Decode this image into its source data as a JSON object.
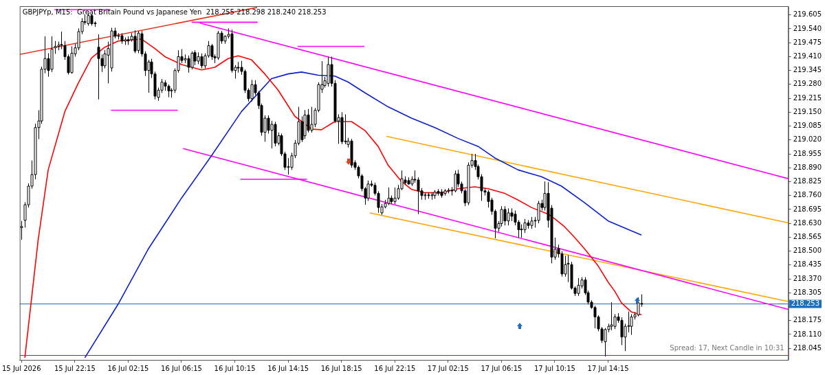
{
  "chart_data": {
    "type": "candlestick",
    "title": "GBPJPYp, M15:  Great Britain Pound vs Japanese Yen  218.255 218.298 218.240 218.253",
    "annotations": [
      "Spread: 17, Next Candle in 10:31"
    ],
    "x": [
      "2026-07-15T18:15",
      "2026-07-15T18:30",
      "2026-07-15T18:45",
      "2026-07-15T19:00",
      "2026-07-15T19:15",
      "2026-07-15T19:30",
      "2026-07-15T19:45",
      "2026-07-15T20:00",
      "2026-07-15T20:15",
      "2026-07-15T20:30",
      "2026-07-15T20:45",
      "2026-07-15T21:00",
      "2026-07-15T21:15",
      "2026-07-15T21:30",
      "2026-07-15T21:45",
      "2026-07-15T22:00",
      "2026-07-15T22:15",
      "2026-07-15T22:30",
      "2026-07-15T22:45",
      "2026-07-15T23:00",
      "2026-07-15T23:15",
      "2026-07-15T23:30",
      "2026-07-15T23:45",
      "2026-07-16T00:00",
      "2026-07-16T00:15",
      "2026-07-16T00:30",
      "2026-07-16T00:45",
      "2026-07-16T01:00",
      "2026-07-16T01:15",
      "2026-07-16T01:30",
      "2026-07-16T01:45",
      "2026-07-16T02:00",
      "2026-07-16T02:15",
      "2026-07-16T02:30",
      "2026-07-16T02:45",
      "2026-07-16T03:00",
      "2026-07-16T03:15",
      "2026-07-16T03:30",
      "2026-07-16T03:45",
      "2026-07-16T04:00",
      "2026-07-16T04:15",
      "2026-07-16T04:30",
      "2026-07-16T04:45",
      "2026-07-16T05:00",
      "2026-07-16T05:15",
      "2026-07-16T05:30",
      "2026-07-16T05:45",
      "2026-07-16T06:00",
      "2026-07-16T06:15",
      "2026-07-16T06:30",
      "2026-07-16T06:45",
      "2026-07-16T07:00",
      "2026-07-16T07:15",
      "2026-07-16T07:30",
      "2026-07-16T07:45",
      "2026-07-16T08:00",
      "2026-07-16T08:15",
      "2026-07-16T08:30",
      "2026-07-16T08:45",
      "2026-07-16T09:00",
      "2026-07-16T09:15",
      "2026-07-16T09:30",
      "2026-07-16T09:45",
      "2026-07-16T10:00",
      "2026-07-16T10:15",
      "2026-07-16T10:30",
      "2026-07-16T10:45",
      "2026-07-16T11:00",
      "2026-07-16T11:15",
      "2026-07-16T11:30",
      "2026-07-16T11:45",
      "2026-07-16T12:00",
      "2026-07-16T12:15",
      "2026-07-16T12:30",
      "2026-07-16T12:45",
      "2026-07-16T13:00",
      "2026-07-16T13:15",
      "2026-07-16T13:30",
      "2026-07-16T13:45",
      "2026-07-16T14:00",
      "2026-07-16T14:15",
      "2026-07-16T14:30",
      "2026-07-16T14:45",
      "2026-07-16T15:00",
      "2026-07-16T15:15",
      "2026-07-16T15:30",
      "2026-07-16T15:45",
      "2026-07-16T16:00",
      "2026-07-16T16:15",
      "2026-07-16T16:30",
      "2026-07-16T16:45",
      "2026-07-16T17:00",
      "2026-07-16T17:15",
      "2026-07-16T17:30",
      "2026-07-16T17:45",
      "2026-07-16T18:00",
      "2026-07-16T18:15",
      "2026-07-16T18:30",
      "2026-07-16T18:45",
      "2026-07-16T19:00",
      "2026-07-16T19:15",
      "2026-07-16T19:30",
      "2026-07-16T19:45",
      "2026-07-16T20:00",
      "2026-07-16T20:15",
      "2026-07-16T20:30",
      "2026-07-16T20:45",
      "2026-07-16T21:00",
      "2026-07-16T21:15",
      "2026-07-16T21:30",
      "2026-07-16T21:45",
      "2026-07-16T22:00",
      "2026-07-16T22:15",
      "2026-07-16T22:30",
      "2026-07-16T22:45",
      "2026-07-16T23:00",
      "2026-07-16T23:15",
      "2026-07-16T23:30",
      "2026-07-16T23:45",
      "2026-07-17T00:00",
      "2026-07-17T00:15",
      "2026-07-17T00:30",
      "2026-07-17T00:45",
      "2026-07-17T01:00",
      "2026-07-17T01:15",
      "2026-07-17T01:30",
      "2026-07-17T01:45",
      "2026-07-17T02:00",
      "2026-07-17T02:15",
      "2026-07-17T02:30",
      "2026-07-17T02:45",
      "2026-07-17T03:00",
      "2026-07-17T03:15",
      "2026-07-17T03:30",
      "2026-07-17T03:45",
      "2026-07-17T04:00",
      "2026-07-17T04:15",
      "2026-07-17T04:30",
      "2026-07-17T04:45",
      "2026-07-17T05:00",
      "2026-07-17T05:15",
      "2026-07-17T05:30",
      "2026-07-17T05:45",
      "2026-07-17T06:00",
      "2026-07-17T06:15",
      "2026-07-17T06:30",
      "2026-07-17T06:45",
      "2026-07-17T07:00",
      "2026-07-17T07:15",
      "2026-07-17T07:30",
      "2026-07-17T07:45",
      "2026-07-17T08:00",
      "2026-07-17T08:15",
      "2026-07-17T08:30",
      "2026-07-17T08:45",
      "2026-07-17T09:00",
      "2026-07-17T09:15",
      "2026-07-17T09:30",
      "2026-07-17T09:45",
      "2026-07-17T10:00",
      "2026-07-17T10:15",
      "2026-07-17T10:30",
      "2026-07-17T10:45",
      "2026-07-17T11:00",
      "2026-07-17T11:15",
      "2026-07-17T11:30",
      "2026-07-17T11:45",
      "2026-07-17T12:00",
      "2026-07-17T12:15",
      "2026-07-17T12:30",
      "2026-07-17T12:45",
      "2026-07-17T13:00",
      "2026-07-17T13:15",
      "2026-07-17T13:30",
      "2026-07-17T13:45",
      "2026-07-17T14:00",
      "2026-07-17T14:15",
      "2026-07-17T14:30",
      "2026-07-17T14:45",
      "2026-07-17T15:00",
      "2026-07-17T15:15",
      "2026-07-17T15:30",
      "2026-07-17T15:45",
      "2026-07-17T16:00",
      "2026-07-17T16:15",
      "2026-07-17T16:30",
      "2026-07-17T16:45"
    ],
    "ohlc": [
      [
        218.61,
        218.641,
        218.553,
        218.615
      ],
      [
        218.644,
        218.729,
        218.61,
        218.717
      ],
      [
        218.717,
        218.817,
        218.704,
        218.804
      ],
      [
        218.804,
        218.924,
        218.792,
        218.858
      ],
      [
        218.858,
        219.096,
        218.836,
        219.078
      ],
      [
        219.078,
        219.159,
        219.024,
        219.109
      ],
      [
        219.109,
        219.363,
        219.096,
        219.351
      ],
      [
        219.351,
        219.505,
        219.332,
        219.401
      ],
      [
        219.401,
        219.426,
        219.316,
        219.345
      ],
      [
        219.351,
        219.505,
        219.338,
        219.445
      ],
      [
        219.452,
        219.483,
        219.423,
        219.458
      ],
      [
        219.458,
        219.48,
        219.44,
        219.464
      ],
      [
        219.464,
        219.527,
        219.445,
        219.467
      ],
      [
        219.461,
        219.483,
        219.395,
        219.41
      ],
      [
        219.41,
        219.42,
        219.326,
        219.335
      ],
      [
        219.335,
        219.458,
        219.33,
        219.426
      ],
      [
        219.423,
        219.47,
        219.41,
        219.451
      ],
      [
        219.451,
        219.542,
        219.44,
        219.527
      ],
      [
        219.527,
        219.59,
        219.515,
        219.574
      ],
      [
        219.574,
        219.608,
        219.56,
        219.571
      ],
      [
        219.564,
        219.615,
        219.555,
        219.602
      ],
      [
        219.602,
        219.61,
        219.555,
        219.564
      ],
      [
        219.567,
        219.575,
        219.549,
        219.564
      ],
      [
        219.454,
        219.514,
        219.21,
        219.401
      ],
      [
        219.401,
        219.42,
        219.338,
        219.367
      ],
      [
        219.367,
        219.44,
        219.355,
        219.423
      ],
      [
        219.417,
        219.48,
        219.285,
        219.448
      ],
      [
        219.357,
        219.545,
        219.34,
        219.53
      ],
      [
        219.53,
        219.545,
        219.495,
        219.505
      ],
      [
        219.505,
        219.52,
        219.49,
        219.508
      ],
      [
        219.508,
        219.52,
        219.47,
        219.483
      ],
      [
        219.483,
        219.5,
        219.465,
        219.489
      ],
      [
        219.489,
        219.505,
        219.465,
        219.483
      ],
      [
        219.489,
        219.52,
        219.48,
        219.505
      ],
      [
        219.505,
        219.533,
        219.426,
        219.436
      ],
      [
        219.439,
        219.53,
        219.426,
        219.52
      ],
      [
        219.517,
        219.53,
        219.41,
        219.423
      ],
      [
        219.423,
        219.435,
        219.319,
        219.345
      ],
      [
        219.345,
        219.395,
        219.241,
        219.385
      ],
      [
        219.385,
        219.4,
        219.31,
        219.329
      ],
      [
        219.329,
        219.34,
        219.21,
        219.225
      ],
      [
        219.219,
        219.265,
        219.203,
        219.253
      ],
      [
        219.253,
        219.305,
        219.24,
        219.291
      ],
      [
        219.288,
        219.3,
        219.25,
        219.272
      ],
      [
        219.272,
        219.28,
        219.22,
        219.25
      ],
      [
        219.25,
        219.262,
        219.218,
        219.253
      ],
      [
        219.253,
        219.355,
        219.24,
        219.345
      ],
      [
        219.345,
        219.44,
        219.335,
        219.41
      ],
      [
        219.41,
        219.445,
        219.38,
        219.392
      ],
      [
        219.395,
        219.42,
        219.38,
        219.401
      ],
      [
        219.401,
        219.415,
        219.335,
        219.36
      ],
      [
        219.36,
        219.435,
        219.35,
        219.426
      ],
      [
        219.429,
        219.44,
        219.37,
        219.389
      ],
      [
        219.389,
        219.43,
        219.375,
        219.41
      ],
      [
        219.41,
        219.425,
        219.355,
        219.367
      ],
      [
        219.367,
        219.425,
        219.355,
        219.414
      ],
      [
        219.414,
        219.483,
        219.405,
        219.461
      ],
      [
        219.461,
        219.47,
        219.395,
        219.41
      ],
      [
        219.41,
        219.42,
        219.38,
        219.404
      ],
      [
        219.404,
        219.53,
        219.395,
        219.52
      ],
      [
        219.52,
        219.53,
        219.47,
        219.483
      ],
      [
        219.483,
        219.51,
        219.47,
        219.505
      ],
      [
        219.505,
        219.542,
        219.495,
        219.514
      ],
      [
        219.517,
        219.536,
        219.335,
        219.345
      ],
      [
        219.345,
        219.37,
        219.307,
        219.36
      ],
      [
        219.36,
        219.385,
        219.335,
        219.357
      ],
      [
        219.36,
        219.39,
        219.325,
        219.341
      ],
      [
        219.341,
        219.35,
        219.24,
        219.253
      ],
      [
        219.253,
        219.262,
        219.2,
        219.213
      ],
      [
        219.213,
        219.301,
        219.2,
        219.279
      ],
      [
        219.279,
        219.3,
        219.23,
        219.241
      ],
      [
        219.241,
        219.25,
        219.165,
        219.181
      ],
      [
        219.181,
        219.19,
        219.04,
        219.056
      ],
      [
        219.056,
        219.135,
        219.012,
        219.122
      ],
      [
        219.122,
        219.135,
        219.05,
        219.065
      ],
      [
        219.065,
        219.11,
        218.98,
        219.093
      ],
      [
        219.093,
        219.105,
        218.99,
        219.005
      ],
      [
        219.005,
        219.055,
        218.995,
        219.04
      ],
      [
        219.04,
        219.05,
        218.945,
        218.955
      ],
      [
        218.955,
        218.965,
        218.88,
        218.892
      ],
      [
        218.892,
        218.935,
        218.858,
        218.895
      ],
      [
        218.892,
        218.96,
        218.88,
        218.946
      ],
      [
        218.946,
        219.02,
        218.935,
        219.005
      ],
      [
        219.005,
        219.175,
        218.995,
        219.106
      ],
      [
        219.106,
        219.13,
        219.01,
        219.021
      ],
      [
        219.04,
        219.16,
        219.025,
        219.137
      ],
      [
        219.137,
        219.165,
        219.055,
        219.065
      ],
      [
        219.065,
        219.175,
        219.055,
        219.093
      ],
      [
        219.093,
        219.17,
        219.08,
        219.159
      ],
      [
        219.159,
        219.29,
        219.15,
        219.279
      ],
      [
        219.257,
        219.389,
        219.24,
        219.279
      ],
      [
        219.275,
        219.315,
        219.265,
        219.297
      ],
      [
        219.285,
        219.41,
        219.27,
        219.373
      ],
      [
        219.373,
        219.41,
        219.27,
        219.285
      ],
      [
        219.285,
        219.3,
        219.1,
        219.109
      ],
      [
        219.109,
        219.14,
        219.002,
        219.125
      ],
      [
        219.125,
        219.15,
        219,
        219.012
      ],
      [
        219.012,
        219.14,
        219,
        219.015
      ],
      [
        218.999,
        219.03,
        218.985,
        219.015
      ],
      [
        219.015,
        219.025,
        218.89,
        218.902
      ],
      [
        218.914,
        218.925,
        218.88,
        218.892
      ],
      [
        218.892,
        218.9,
        218.84,
        218.852
      ],
      [
        218.852,
        218.86,
        218.78,
        218.792
      ],
      [
        218.792,
        218.8,
        218.717,
        218.748
      ],
      [
        218.748,
        218.83,
        218.735,
        218.814
      ],
      [
        218.814,
        218.83,
        218.8,
        218.808
      ],
      [
        218.808,
        218.82,
        218.76,
        218.77
      ],
      [
        218.77,
        218.78,
        218.679,
        218.704
      ],
      [
        218.679,
        218.72,
        218.67,
        218.707
      ],
      [
        218.707,
        218.74,
        218.7,
        218.723
      ],
      [
        218.723,
        218.798,
        218.715,
        218.748
      ],
      [
        218.748,
        218.76,
        218.72,
        218.732
      ],
      [
        218.732,
        218.798,
        218.72,
        218.748
      ],
      [
        218.748,
        218.81,
        218.74,
        218.792
      ],
      [
        218.792,
        218.877,
        218.785,
        218.839
      ],
      [
        218.833,
        218.85,
        218.81,
        218.82
      ],
      [
        218.83,
        218.845,
        218.81,
        218.814
      ],
      [
        218.814,
        218.85,
        218.805,
        218.836
      ],
      [
        218.836,
        218.877,
        218.82,
        218.833
      ],
      [
        218.833,
        218.845,
        218.673,
        218.782
      ],
      [
        218.782,
        218.795,
        218.74,
        218.76
      ],
      [
        218.76,
        218.775,
        218.74,
        218.763
      ],
      [
        218.763,
        218.775,
        218.745,
        218.76
      ],
      [
        218.76,
        218.775,
        218.74,
        218.763
      ],
      [
        218.76,
        218.785,
        218.745,
        218.776
      ],
      [
        218.779,
        218.79,
        218.76,
        218.77
      ],
      [
        218.776,
        218.79,
        218.75,
        218.76
      ],
      [
        218.77,
        218.79,
        218.76,
        218.782
      ],
      [
        218.782,
        218.795,
        218.77,
        218.785
      ],
      [
        218.785,
        218.8,
        218.76,
        218.782
      ],
      [
        218.782,
        218.877,
        218.775,
        218.861
      ],
      [
        218.861,
        218.88,
        218.8,
        218.814
      ],
      [
        218.814,
        218.825,
        218.77,
        218.782
      ],
      [
        218.782,
        218.79,
        218.71,
        218.726
      ],
      [
        218.726,
        218.915,
        218.715,
        218.902
      ],
      [
        218.902,
        218.955,
        218.89,
        218.924
      ],
      [
        218.924,
        218.955,
        218.88,
        218.896
      ],
      [
        218.896,
        218.905,
        218.835,
        218.848
      ],
      [
        218.848,
        218.86,
        218.735,
        218.782
      ],
      [
        218.782,
        218.795,
        218.76,
        218.776
      ],
      [
        218.776,
        218.785,
        218.704,
        218.732
      ],
      [
        218.739,
        218.75,
        218.67,
        218.686
      ],
      [
        218.686,
        218.695,
        218.56,
        218.607
      ],
      [
        218.607,
        218.64,
        218.59,
        218.629
      ],
      [
        218.629,
        218.71,
        218.615,
        218.695
      ],
      [
        218.695,
        218.71,
        218.62,
        218.641
      ],
      [
        218.641,
        218.7,
        218.62,
        218.679
      ],
      [
        218.679,
        218.7,
        218.64,
        218.663
      ],
      [
        218.673,
        218.69,
        218.62,
        218.635
      ],
      [
        218.635,
        218.645,
        218.563,
        218.6
      ],
      [
        218.6,
        218.625,
        218.563,
        218.603
      ],
      [
        218.6,
        218.65,
        218.585,
        218.632
      ],
      [
        218.632,
        218.645,
        218.605,
        218.62
      ],
      [
        218.62,
        218.66,
        218.605,
        218.641
      ],
      [
        218.641,
        218.66,
        218.61,
        218.644
      ],
      [
        218.644,
        218.735,
        218.63,
        218.723
      ],
      [
        218.723,
        218.74,
        218.69,
        218.704
      ],
      [
        218.704,
        218.826,
        218.69,
        218.77
      ],
      [
        218.77,
        218.823,
        218.61,
        218.644
      ],
      [
        218.701,
        218.715,
        218.443,
        218.472
      ],
      [
        218.472,
        218.563,
        218.46,
        218.509
      ],
      [
        218.512,
        218.53,
        218.47,
        218.487
      ],
      [
        218.487,
        218.5,
        218.381,
        218.393
      ],
      [
        218.393,
        218.478,
        218.38,
        218.437
      ],
      [
        218.44,
        218.481,
        218.355,
        218.443
      ],
      [
        218.437,
        218.45,
        218.32,
        218.327
      ],
      [
        218.327,
        218.335,
        218.29,
        218.302
      ],
      [
        218.302,
        218.374,
        218.29,
        218.34
      ],
      [
        218.337,
        218.378,
        218.325,
        218.365
      ],
      [
        218.365,
        218.378,
        218.295,
        218.305
      ],
      [
        218.305,
        218.315,
        218.25,
        218.261
      ],
      [
        218.261,
        218.27,
        218.23,
        218.236
      ],
      [
        218.236,
        218.245,
        218.139,
        218.192
      ],
      [
        218.192,
        218.2,
        218.125,
        218.136
      ],
      [
        218.136,
        218.145,
        218.07,
        218.082
      ],
      [
        218.076,
        218.14,
        218.007,
        218.133
      ],
      [
        218.133,
        218.16,
        218.12,
        218.148
      ],
      [
        218.148,
        218.261,
        218.13,
        218.155
      ],
      [
        218.148,
        218.205,
        218.135,
        218.192
      ],
      [
        218.192,
        218.21,
        218.165,
        218.176
      ],
      [
        218.176,
        218.19,
        218.06,
        218.098
      ],
      [
        218.098,
        218.16,
        218.032,
        218.148
      ],
      [
        218.148,
        218.217,
        218.12,
        218.151
      ],
      [
        218.148,
        218.205,
        218.108,
        218.192
      ],
      [
        218.192,
        218.215,
        218.18,
        218.202
      ],
      [
        218.202,
        218.283,
        218.195,
        218.258
      ],
      [
        218.255,
        218.298,
        218.24,
        218.253
      ]
    ],
    "series": [
      {
        "type": "line",
        "color": "#ff0000",
        "x": [
          "2026-07-15T18:30",
          "2026-07-15T19:30",
          "2026-07-15T20:15",
          "2026-07-15T21:30",
          "2026-07-15T22:30",
          "2026-07-15T23:30",
          "2026-07-16T00:30",
          "2026-07-16T01:30",
          "2026-07-16T03:15",
          "2026-07-16T04:15",
          "2026-07-16T05:00",
          "2026-07-16T06:15",
          "2026-07-16T07:45",
          "2026-07-16T08:45",
          "2026-07-16T09:45",
          "2026-07-16T10:30",
          "2026-07-16T11:30",
          "2026-07-16T12:30",
          "2026-07-16T13:30",
          "2026-07-16T14:45",
          "2026-07-16T16:00",
          "2026-07-16T16:45",
          "2026-07-16T17:45",
          "2026-07-16T19:00",
          "2026-07-16T20:00",
          "2026-07-16T21:00",
          "2026-07-16T21:45",
          "2026-07-16T22:45",
          "2026-07-16T23:30",
          "2026-07-17T00:30",
          "2026-07-17T01:45",
          "2026-07-17T03:00",
          "2026-07-17T04:15",
          "2026-07-17T05:15",
          "2026-07-17T06:30",
          "2026-07-17T07:30",
          "2026-07-17T08:30",
          "2026-07-17T09:45",
          "2026-07-17T10:15",
          "2026-07-17T11:00",
          "2026-07-17T11:45",
          "2026-07-17T12:30",
          "2026-07-17T13:30",
          "2026-07-17T14:15",
          "2026-07-17T14:45",
          "2026-07-17T15:15",
          "2026-07-17T16:00",
          "2026-07-17T16:45"
        ],
        "values": [
          218.001,
          218.553,
          218.88,
          219.153,
          219.285,
          219.404,
          219.454,
          219.483,
          219.492,
          219.448,
          219.41,
          219.373,
          219.348,
          219.36,
          219.401,
          219.414,
          219.395,
          219.329,
          219.253,
          219.131,
          219.071,
          219.068,
          219.106,
          219.106,
          219.065,
          218.99,
          218.902,
          218.826,
          218.789,
          218.773,
          218.773,
          218.792,
          218.801,
          218.792,
          218.77,
          218.739,
          218.704,
          218.673,
          218.651,
          218.613,
          218.563,
          218.509,
          218.431,
          218.355,
          218.312,
          218.258,
          218.215,
          218.202
        ]
      },
      {
        "type": "line",
        "color": "#0a1ecc",
        "x": [
          "2026-07-15T23:00",
          "2026-07-16T01:30",
          "2026-07-16T03:45",
          "2026-07-16T06:15",
          "2026-07-16T08:30",
          "2026-07-16T10:45",
          "2026-07-16T13:00",
          "2026-07-16T14:15",
          "2026-07-16T15:15",
          "2026-07-16T16:30",
          "2026-07-16T17:45",
          "2026-07-16T18:45",
          "2026-07-16T20:00",
          "2026-07-16T21:45",
          "2026-07-16T23:30",
          "2026-07-17T01:15",
          "2026-07-17T03:00",
          "2026-07-17T04:30",
          "2026-07-17T05:45",
          "2026-07-17T07:30",
          "2026-07-17T09:15",
          "2026-07-17T10:45",
          "2026-07-17T12:30",
          "2026-07-17T14:15",
          "2026-07-17T16:45"
        ],
        "values": [
          218.001,
          218.252,
          218.509,
          218.748,
          218.946,
          219.153,
          219.307,
          219.329,
          219.338,
          219.323,
          219.319,
          219.291,
          219.241,
          219.175,
          219.122,
          219.078,
          219.027,
          218.99,
          218.936,
          218.88,
          218.848,
          218.804,
          218.726,
          218.641,
          218.575
        ]
      },
      {
        "type": "line",
        "color": "#e8321e",
        "x": [
          "2026-07-15T18:07",
          "2026-07-16T11:55"
        ],
        "values": [
          219.42,
          219.64
        ]
      },
      {
        "type": "line",
        "color": "#ff00ff",
        "x": [
          "2026-07-16T07:37",
          "2026-07-18T03:46"
        ],
        "values": [
          219.567,
          218.839
        ]
      },
      {
        "type": "line",
        "color": "#ff00ff",
        "x": [
          "2026-07-16T06:22",
          "2026-07-18T03:46"
        ],
        "values": [
          218.98,
          218.227
        ]
      },
      {
        "type": "line",
        "color": "#ffa500",
        "x": [
          "2026-07-16T21:37",
          "2026-07-18T03:46"
        ],
        "values": [
          219.037,
          218.632
        ]
      },
      {
        "type": "line",
        "color": "#ffa500",
        "x": [
          "2026-07-16T20:22",
          "2026-07-18T03:46"
        ],
        "values": [
          218.679,
          218.264
        ]
      },
      {
        "type": "line",
        "color": "#ff00ff",
        "x": [
          "2026-07-15T20:43",
          "2026-07-16T00:55"
        ],
        "values": [
          219.63,
          219.63
        ]
      },
      {
        "type": "line",
        "color": "#ff00ff",
        "x": [
          "2026-07-16T00:58",
          "2026-07-16T05:58"
        ],
        "values": [
          219.159,
          219.159
        ]
      },
      {
        "type": "line",
        "color": "#ff00ff",
        "x": [
          "2026-07-16T07:01",
          "2026-07-16T11:58"
        ],
        "values": [
          219.571,
          219.571
        ]
      },
      {
        "type": "line",
        "color": "#ff00ff",
        "x": [
          "2026-07-16T14:58",
          "2026-07-16T19:58"
        ],
        "values": [
          219.458,
          219.458
        ]
      },
      {
        "type": "line",
        "color": "#ff00ff",
        "x": [
          "2026-07-16T10:40",
          "2026-07-16T15:40"
        ],
        "values": [
          218.836,
          218.836
        ]
      }
    ],
    "ref_lines": [
      {
        "axis": "y",
        "value": 218.253,
        "label": "218.253",
        "color": "#1e6fc0"
      },
      {
        "axis": "y",
        "value": 218.013,
        "color": "#008000"
      }
    ],
    "xlim": [
      "2026-07-15T18:07",
      "2026-07-18T03:46"
    ],
    "xticks": [
      {
        "value": "2026-07-15T18:15",
        "label": "15 Jul 2026"
      },
      {
        "value": "2026-07-15T22:15",
        "label": "15 Jul 22:15"
      },
      {
        "value": "2026-07-16T02:15",
        "label": "16 Jul 02:15"
      },
      {
        "value": "2026-07-16T06:15",
        "label": "16 Jul 06:15"
      },
      {
        "value": "2026-07-16T10:15",
        "label": "16 Jul 10:15"
      },
      {
        "value": "2026-07-16T14:15",
        "label": "16 Jul 14:15"
      },
      {
        "value": "2026-07-16T18:15",
        "label": "16 Jul 18:15"
      },
      {
        "value": "2026-07-16T22:15",
        "label": "16 Jul 22:15"
      },
      {
        "value": "2026-07-17T02:15",
        "label": "17 Jul 02:15"
      },
      {
        "value": "2026-07-17T06:15",
        "label": "17 Jul 06:15"
      },
      {
        "value": "2026-07-17T10:15",
        "label": "17 Jul 10:15"
      },
      {
        "value": "2026-07-17T14:15",
        "label": "17 Jul 14:15"
      }
    ],
    "ylim": [
      217.991,
      219.646
    ],
    "yticks": [
      219.605,
      {
        "value": 219.54,
        "label": "219.540"
      },
      219.475,
      {
        "value": 219.41,
        "label": "219.410"
      },
      219.345,
      {
        "value": 219.28,
        "label": "219.280"
      },
      219.215,
      {
        "value": 219.15,
        "label": "219.150"
      },
      219.085,
      {
        "value": 219.02,
        "label": "219.020"
      },
      218.955,
      {
        "value": 218.89,
        "label": "218.890"
      },
      218.825,
      {
        "value": 218.76,
        "label": "218.760"
      },
      218.695,
      {
        "value": 218.63,
        "label": "218.630"
      },
      218.565,
      {
        "value": 218.5,
        "label": "218.500"
      },
      218.435,
      {
        "value": 218.37,
        "label": "218.370"
      },
      218.305,
      {
        "value": 218.24,
        "label": null
      },
      218.175,
      {
        "value": 218.11,
        "label": "218.110"
      },
      218.045
    ],
    "grid": false,
    "legend": false
  }
}
